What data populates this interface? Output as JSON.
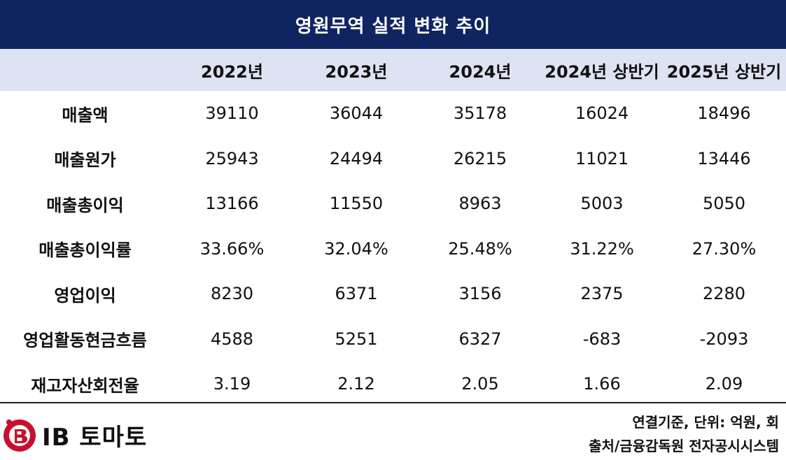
{
  "title": "영원무역 실적 변화 추이",
  "table": {
    "headers": [
      "",
      "2022년",
      "2023년",
      "2024년",
      "2024년 상반기",
      "2025년 상반기"
    ],
    "rows": [
      [
        "매출액",
        "39110",
        "36044",
        "35178",
        "16024",
        "18496"
      ],
      [
        "매출원가",
        "25943",
        "24494",
        "26215",
        "11021",
        "13446"
      ],
      [
        "매출총이익",
        "13166",
        "11550",
        "8963",
        "5003",
        "5050"
      ],
      [
        "매출총이익률",
        "33.66%",
        "32.04%",
        "25.48%",
        "31.22%",
        "27.30%"
      ],
      [
        "영업이익",
        "8230",
        "6371",
        "3156",
        "2375",
        "2280"
      ],
      [
        "영업활동현금흐름",
        "4588",
        "5251",
        "6327",
        "-683",
        "-2093"
      ],
      [
        "재고자산회전율",
        "3.19",
        "2.12",
        "2.05",
        "1.66",
        "2.09"
      ]
    ]
  },
  "footer": {
    "basis": "연결기준, 단위: 억원, 회",
    "source": "출처/금융감독원 전자공시시스템"
  },
  "logo": {
    "text": "IB 토마토",
    "icon": "ib-tomato-logo-icon",
    "color": "#c8102e"
  },
  "colors": {
    "title_bg": "#0f2461",
    "header_bg": "#dde3f2"
  }
}
